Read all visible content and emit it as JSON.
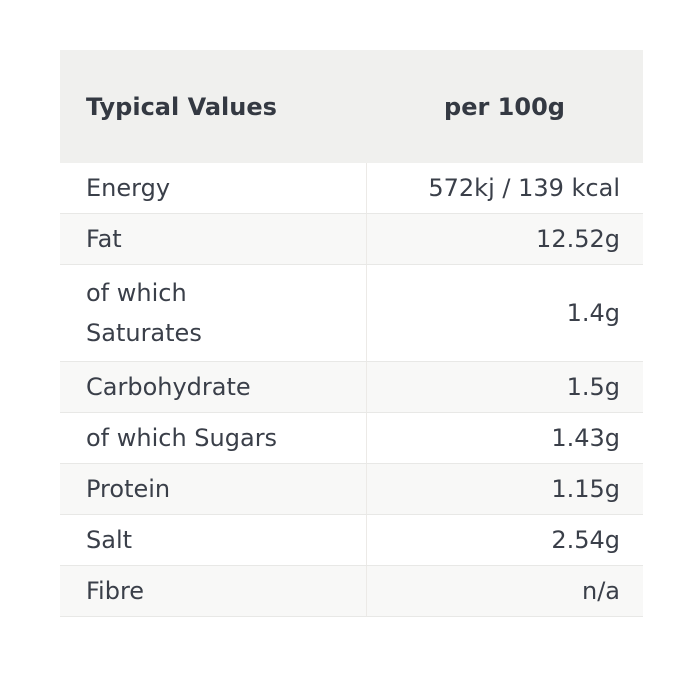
{
  "colors": {
    "page_background": "#ffffff",
    "header_background": "#f0f0ee",
    "stripe_background": "#f8f8f7",
    "border": "#e8e8e6",
    "text": "#3a3f49"
  },
  "table": {
    "header": {
      "label_col": "Typical Values",
      "value_col": "per 100g"
    },
    "rows": [
      {
        "label": "Energy",
        "value": "572kj / 139 kcal"
      },
      {
        "label": "Fat",
        "value": "12.52g"
      },
      {
        "label": "of which\nSaturates",
        "value": "1.4g"
      },
      {
        "label": "Carbohydrate",
        "value": "1.5g"
      },
      {
        "label": "of which Sugars",
        "value": "1.43g"
      },
      {
        "label": "Protein",
        "value": "1.15g"
      },
      {
        "label": "Salt",
        "value": "2.54g"
      },
      {
        "label": "Fibre",
        "value": "n/a"
      }
    ]
  },
  "chart_data": {
    "type": "table",
    "title": "Typical Values per 100g",
    "columns": [
      "Typical Values",
      "per 100g"
    ],
    "rows": [
      [
        "Energy",
        "572kj / 139 kcal"
      ],
      [
        "Fat",
        "12.52g"
      ],
      [
        "of which Saturates",
        "1.4g"
      ],
      [
        "Carbohydrate",
        "1.5g"
      ],
      [
        "of which Sugars",
        "1.43g"
      ],
      [
        "Protein",
        "1.15g"
      ],
      [
        "Salt",
        "2.54g"
      ],
      [
        "Fibre",
        "n/a"
      ]
    ]
  }
}
